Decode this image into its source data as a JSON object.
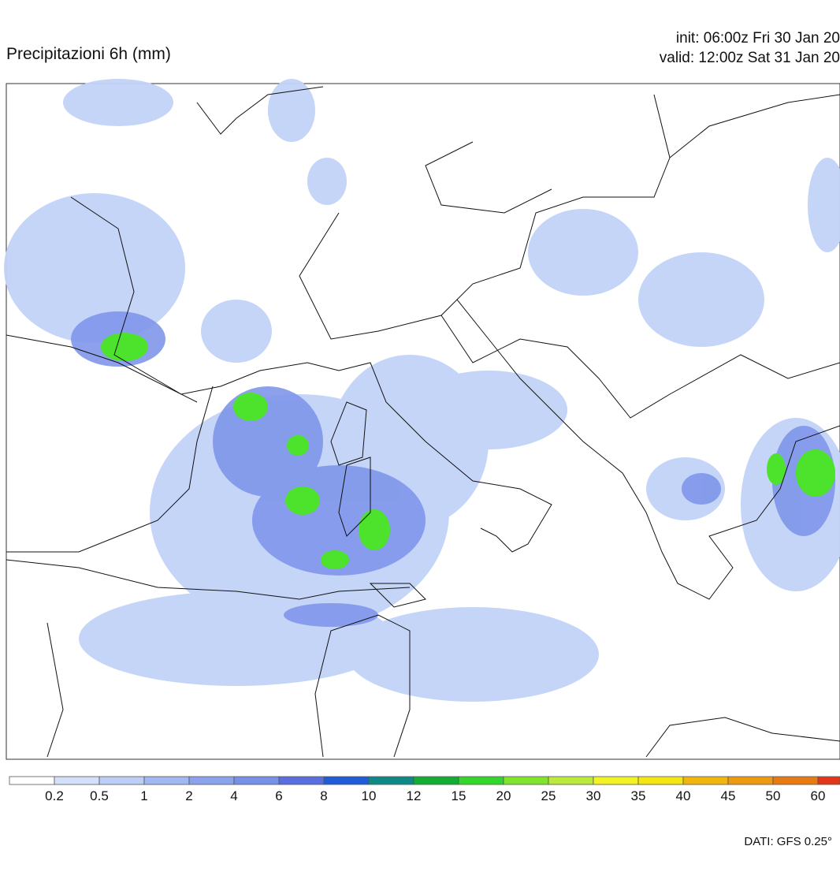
{
  "header": {
    "title": "Precipitazioni 6h (mm)",
    "init": "init: 06:00z Fri 30 Jan 20",
    "valid": "valid: 12:00z Sat 31 Jan 20"
  },
  "legend": {
    "labels": [
      "0.2",
      "0.5",
      "1",
      "2",
      "4",
      "6",
      "8",
      "10",
      "12",
      "15",
      "20",
      "25",
      "30",
      "35",
      "40",
      "45",
      "50",
      "60"
    ],
    "colors": [
      "#ffffff",
      "#d3e0fa",
      "#bccdf6",
      "#a2b8f2",
      "#8ba2ec",
      "#7790e8",
      "#5a6fdf",
      "#1e5cd8",
      "#0e8a86",
      "#13ad36",
      "#33d62a",
      "#80e42c",
      "#b9eb3c",
      "#f2f224",
      "#f3e612",
      "#f1b50f",
      "#ee9912",
      "#e77a12",
      "#e2361a"
    ]
  },
  "footer": {
    "source": "DATI: GFS 0.25°"
  }
}
